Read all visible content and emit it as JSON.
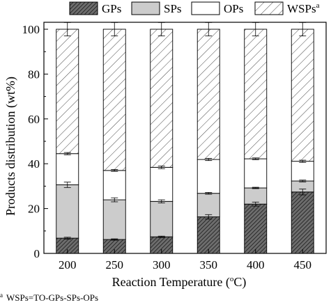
{
  "chart_data": {
    "type": "bar",
    "stacked": true,
    "categories": [
      "200",
      "250",
      "300",
      "350",
      "400",
      "450"
    ],
    "series": [
      {
        "name": "GPs",
        "pattern": "dense-diagonal-dark",
        "color": "#555555",
        "values": [
          6.8,
          6.2,
          7.4,
          16.3,
          22.0,
          27.4
        ],
        "errors": [
          0.4,
          0.3,
          0.3,
          1.0,
          0.9,
          1.3
        ]
      },
      {
        "name": "SPs",
        "pattern": "solid-light-gray",
        "color": "#cccccc",
        "values": [
          23.8,
          17.7,
          15.8,
          10.5,
          7.2,
          4.9
        ],
        "errors": [
          1.2,
          0.9,
          0.7,
          0.4,
          0.3,
          0.4
        ]
      },
      {
        "name": "OPs",
        "pattern": "white",
        "color": "#ffffff",
        "values": [
          13.9,
          13.1,
          15.2,
          15.1,
          13.0,
          8.8
        ],
        "errors": [
          0.5,
          0.4,
          0.6,
          0.5,
          0.4,
          0.5
        ]
      },
      {
        "name": "WSPs",
        "legend_sup": "a",
        "pattern": "sparse-diagonal",
        "color": "#000000",
        "values": [
          55.5,
          63.0,
          61.6,
          58.1,
          57.8,
          58.9
        ],
        "errors": [
          3.0,
          3.0,
          3.0,
          3.0,
          3.0,
          3.0
        ]
      }
    ],
    "xlabel": "Reaction Temperature (",
    "xlabel_unit": "o",
    "xlabel_suffix": "C)",
    "ylabel": "Products distribution (wt%)",
    "ylim": [
      0,
      100
    ],
    "yticks": [
      "0",
      "20",
      "40",
      "60",
      "80",
      "100"
    ],
    "legend_position": "top",
    "footnote_marker": "a",
    "footnote_text": "WSPs=TO-GPs-SPs-OPs"
  }
}
